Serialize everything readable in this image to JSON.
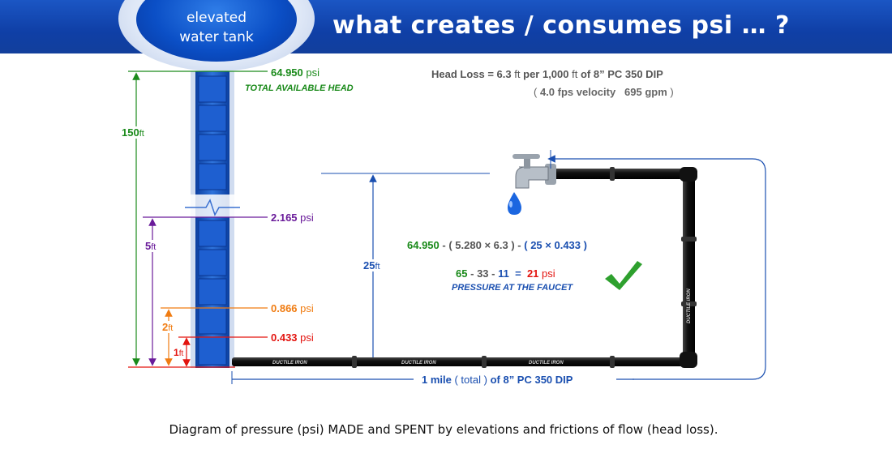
{
  "header": {
    "title": "what creates / consumes psi … ?"
  },
  "tank": {
    "label_line1": "elevated",
    "label_line2": "water tank"
  },
  "readings": {
    "top_value": "64.950",
    "top_unit": "psi",
    "top_caption": "TOTAL AVAILABLE HEAD",
    "r5_value": "2.165",
    "r5_unit": "psi",
    "r2_value": "0.866",
    "r2_unit": "psi",
    "r1_value": "0.433",
    "r1_unit": "psi"
  },
  "heights": {
    "h150_value": "150",
    "h5_value": "5",
    "h2_value": "2",
    "h1_value": "1",
    "h25_value": "25",
    "unit": "ft"
  },
  "head_loss": {
    "line1_a": "Head Loss = 6.3",
    "line1_unit": "ft",
    "line1_b": "per 1,000",
    "line1_unit2": "ft",
    "line1_c": "of 8” PC 350 DIP",
    "line2_open": "(",
    "line2_velocity": "4.0 fps velocity",
    "line2_flow": "695 gpm",
    "line2_close": ")"
  },
  "calc": {
    "formula_total": "64.950",
    "formula_minus1": "-",
    "formula_loss": "( 5.280 × 6.3 )",
    "formula_minus2": "-",
    "formula_elev": "( 25 × 0.433 )",
    "result_a": "65",
    "result_b": "33",
    "result_c": "11",
    "result_eq": "=",
    "result_value": "21",
    "result_unit": "psi",
    "result_caption": "PRESSURE AT THE FAUCET"
  },
  "pipe": {
    "segment_label": "DUCTILE IRON",
    "length_a": "1 mile",
    "length_total": "( total )",
    "length_b": "of 8” PC 350 DIP"
  },
  "caption": "Diagram of pressure (psi) MADE and SPENT by elevations and frictions of flow  (head loss).",
  "colors": {
    "green": "#1a8a1a",
    "purple": "#6a1b9a",
    "orange": "#f07c12",
    "red": "#e3140f",
    "blue": "#1a4fb0",
    "gray": "#555555"
  }
}
